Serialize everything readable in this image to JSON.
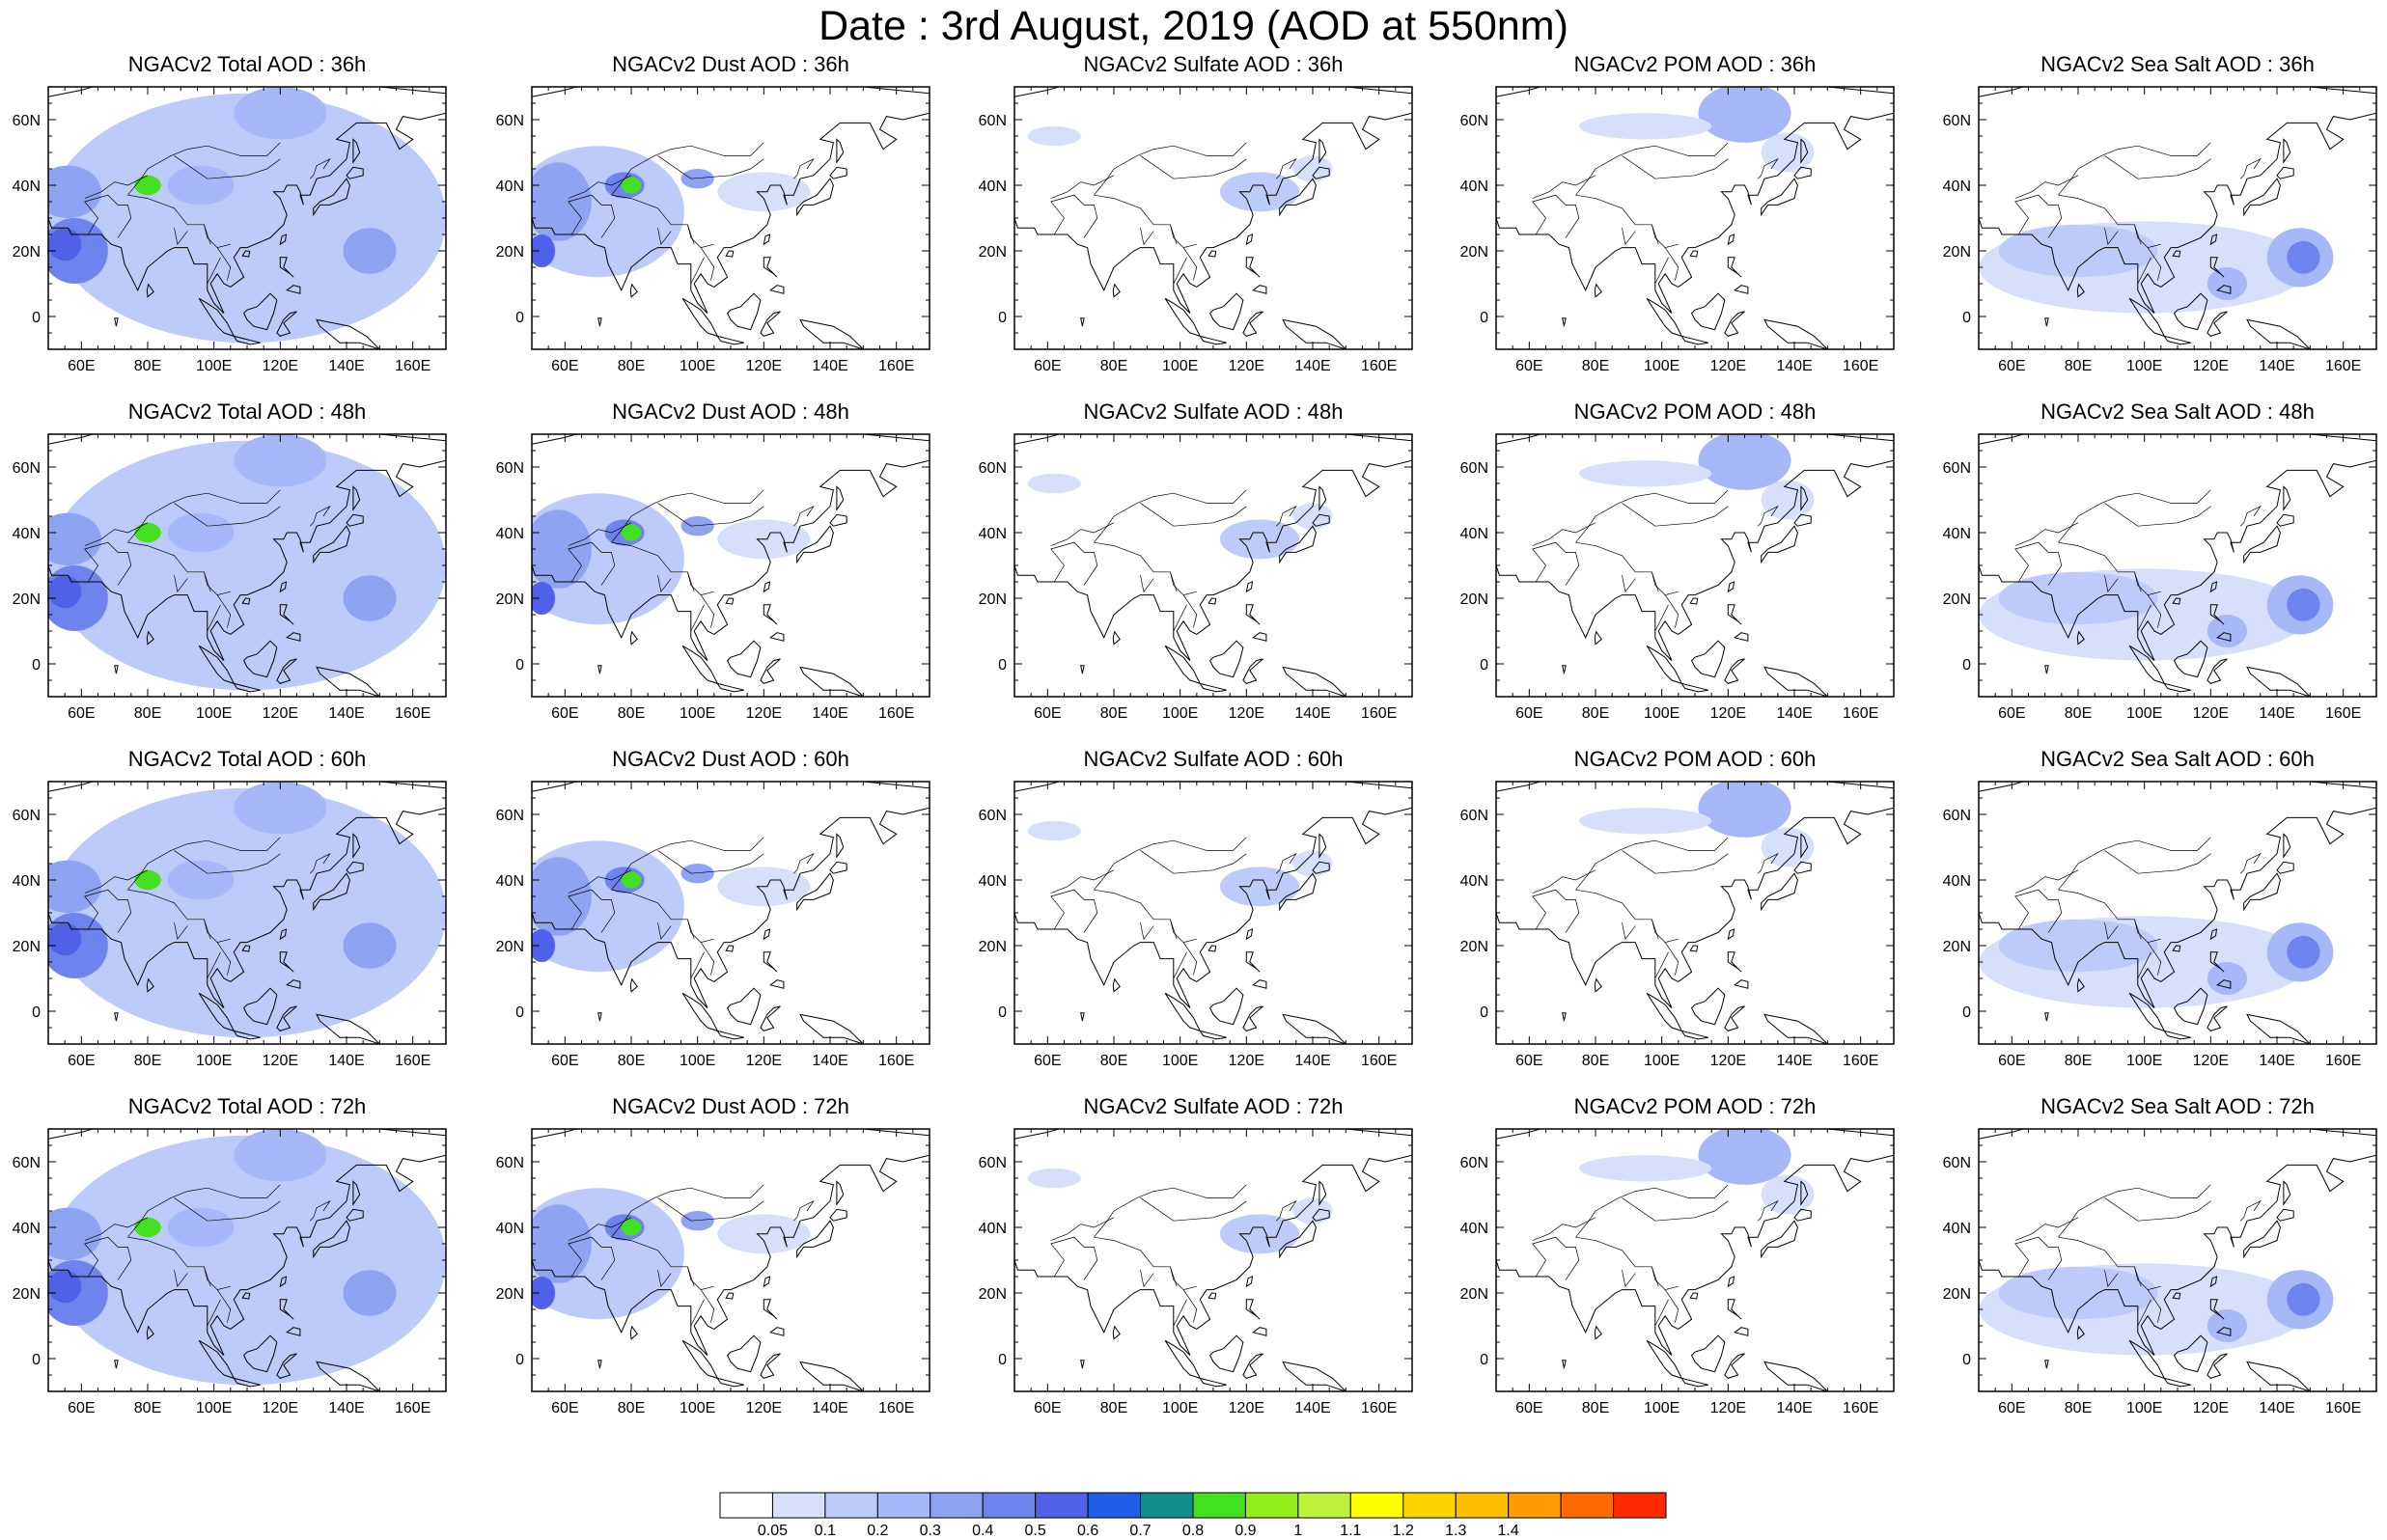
{
  "title": "Date : 3rd August, 2019 (AOD at 550nm)",
  "map": {
    "lon_ticks": [
      "60E",
      "80E",
      "100E",
      "120E",
      "140E",
      "160E"
    ],
    "lon_tick_values": [
      60,
      80,
      100,
      120,
      140,
      160
    ],
    "lat_ticks": [
      "60N",
      "40N",
      "20N",
      "0"
    ],
    "lat_tick_values": [
      60,
      40,
      20,
      0
    ],
    "lon_range": [
      50,
      170
    ],
    "lat_range": [
      -10,
      70
    ],
    "ocean_color": "#ffffff",
    "coastline_color": "#000000"
  },
  "species_colors": {
    "total": "#6f83ee",
    "dust": "#6f83ee",
    "sulfate": "#a7b8f8",
    "pom": "#a7b8f8",
    "seasalt": "#8fa3f3"
  },
  "panels": [
    {
      "title": "NGACv2 Total AOD : 36h",
      "species": "total"
    },
    {
      "title": "NGACv2 Dust AOD : 36h",
      "species": "dust"
    },
    {
      "title": "NGACv2 Sulfate AOD : 36h",
      "species": "sulfate"
    },
    {
      "title": "NGACv2 POM AOD : 36h",
      "species": "pom"
    },
    {
      "title": "NGACv2 Sea Salt AOD : 36h",
      "species": "seasalt"
    },
    {
      "title": "NGACv2 Total AOD : 48h",
      "species": "total"
    },
    {
      "title": "NGACv2 Dust AOD : 48h",
      "species": "dust"
    },
    {
      "title": "NGACv2 Sulfate AOD : 48h",
      "species": "sulfate"
    },
    {
      "title": "NGACv2 POM AOD : 48h",
      "species": "pom"
    },
    {
      "title": "NGACv2 Sea Salt AOD : 48h",
      "species": "seasalt"
    },
    {
      "title": "NGACv2 Total AOD : 60h",
      "species": "total"
    },
    {
      "title": "NGACv2 Dust AOD : 60h",
      "species": "dust"
    },
    {
      "title": "NGACv2 Sulfate AOD : 60h",
      "species": "sulfate"
    },
    {
      "title": "NGACv2 POM AOD : 60h",
      "species": "pom"
    },
    {
      "title": "NGACv2 Sea Salt AOD : 60h",
      "species": "seasalt"
    },
    {
      "title": "NGACv2 Total AOD : 72h",
      "species": "total"
    },
    {
      "title": "NGACv2 Dust AOD : 72h",
      "species": "dust"
    },
    {
      "title": "NGACv2 Sulfate AOD : 72h",
      "species": "sulfate"
    },
    {
      "title": "NGACv2 POM AOD : 72h",
      "species": "pom"
    },
    {
      "title": "NGACv2 Sea Salt  AOD : 72h",
      "species": "seasalt"
    }
  ],
  "colorbar": {
    "colors": [
      "#ffffff",
      "#d6e0fb",
      "#bccbf9",
      "#a7b8f8",
      "#8fa3f3",
      "#6f83ee",
      "#5060e8",
      "#1f5fe6",
      "#138c8c",
      "#43e01f",
      "#93ef1c",
      "#bff23d",
      "#ffff00",
      "#ffd300",
      "#ffbf00",
      "#ff9a00",
      "#ff6a00",
      "#ff2a00"
    ],
    "labels": [
      "0.05",
      "0.1",
      "0.2",
      "0.3",
      "0.4",
      "0.5",
      "0.6",
      "0.7",
      "0.8",
      "0.9",
      "1",
      "1.1",
      "1.2",
      "1.3",
      "1.4"
    ]
  }
}
